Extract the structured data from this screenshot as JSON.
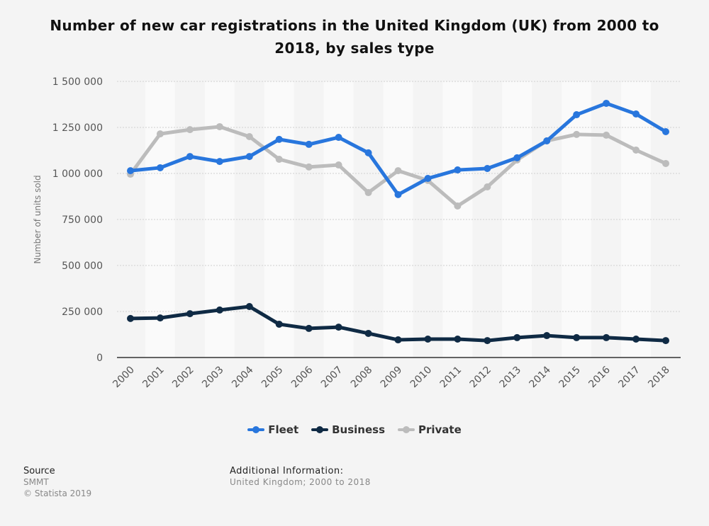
{
  "chart_data": {
    "type": "line",
    "title": "Number of new car registrations in the United Kingdom (UK) from 2000 to 2018, by sales type",
    "ylabel": "Number of units sold",
    "xlabel": "",
    "ylim": [
      0,
      1500000
    ],
    "yticks": [
      0,
      250000,
      500000,
      750000,
      1000000,
      1250000,
      1500000
    ],
    "ytick_labels": [
      "0",
      "250 000",
      "500 000",
      "750 000",
      "1 000 000",
      "1 250 000",
      "1 500 000"
    ],
    "grid": true,
    "legend_position": "bottom",
    "categories": [
      "2000",
      "2001",
      "2002",
      "2003",
      "2004",
      "2005",
      "2006",
      "2007",
      "2008",
      "2009",
      "2010",
      "2011",
      "2012",
      "2013",
      "2014",
      "2015",
      "2016",
      "2017",
      "2018"
    ],
    "series": [
      {
        "name": "Fleet",
        "color": "#2876dd",
        "values": [
          1015000,
          1031000,
          1092000,
          1065000,
          1092000,
          1185000,
          1158000,
          1196000,
          1112000,
          885000,
          973000,
          1019000,
          1027000,
          1085000,
          1177000,
          1319000,
          1381000,
          1323000,
          1227000
        ]
      },
      {
        "name": "Business",
        "color": "#0f2a44",
        "values": [
          212000,
          215000,
          238000,
          258000,
          277000,
          181000,
          158000,
          165000,
          131000,
          96000,
          100000,
          100000,
          92000,
          108000,
          119000,
          108000,
          108000,
          100000,
          92000
        ]
      },
      {
        "name": "Private",
        "color": "#bcbcbc",
        "values": [
          996000,
          1215000,
          1238000,
          1254000,
          1200000,
          1077000,
          1035000,
          1046000,
          896000,
          1015000,
          962000,
          823000,
          927000,
          1073000,
          1177000,
          1212000,
          1208000,
          1127000,
          1054000
        ]
      }
    ]
  },
  "footer": {
    "source_heading": "Source",
    "source": "SMMT",
    "copyright": "© Statista 2019",
    "additional_heading": "Additional Information:",
    "additional": "United Kingdom; 2000 to 2018"
  }
}
